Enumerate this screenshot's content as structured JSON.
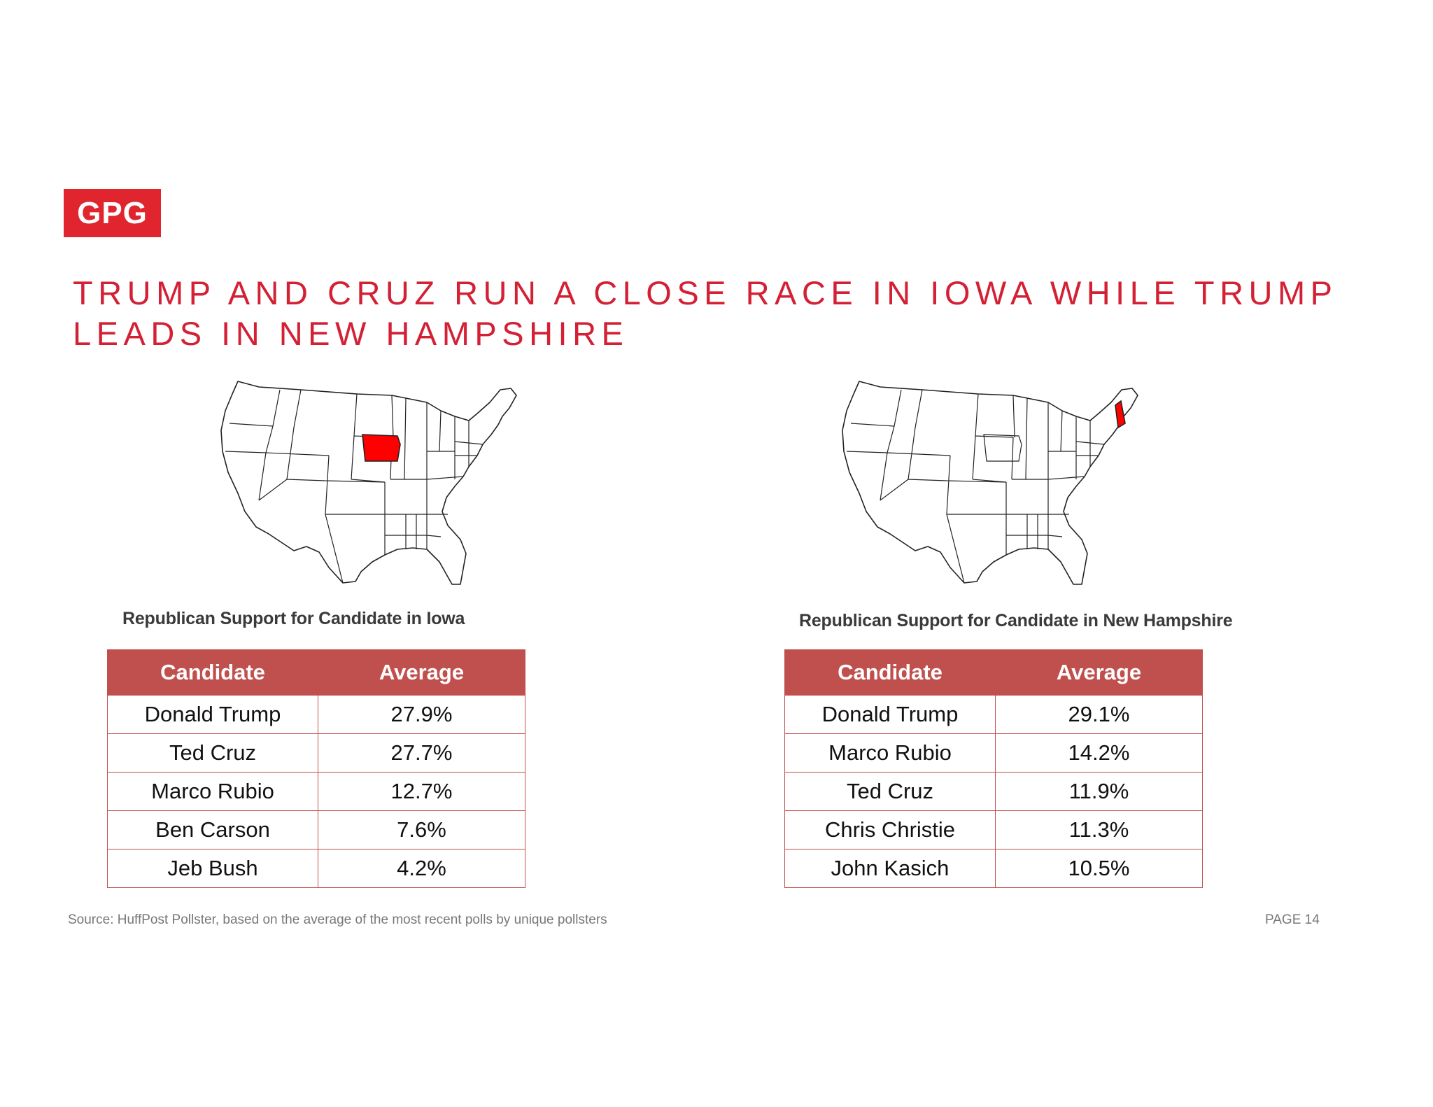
{
  "logo": {
    "text": "GPG"
  },
  "title": {
    "line1": "TRUMP AND CRUZ RUN A CLOSE RACE IN IOWA WHILE TRUMP",
    "line2": "LEADS IN NEW HAMPSHIRE"
  },
  "colors": {
    "brand_red": "#e0252e",
    "title_red": "#d42035",
    "table_header": "#c0504d",
    "highlight_state": "#ff0000"
  },
  "iowa": {
    "highlighted_state": "Iowa",
    "caption": "Republican Support for Candidate in Iowa",
    "headers": [
      "Candidate",
      "Average"
    ],
    "rows": [
      {
        "candidate": "Donald Trump",
        "average": "27.9%"
      },
      {
        "candidate": "Ted Cruz",
        "average": "27.7%"
      },
      {
        "candidate": "Marco Rubio",
        "average": "12.7%"
      },
      {
        "candidate": "Ben Carson",
        "average": "7.6%"
      },
      {
        "candidate": "Jeb Bush",
        "average": "4.2%"
      }
    ]
  },
  "new_hampshire": {
    "highlighted_state": "New Hampshire",
    "caption": "Republican Support for Candidate in New Hampshire",
    "headers": [
      "Candidate",
      "Average"
    ],
    "rows": [
      {
        "candidate": "Donald Trump",
        "average": "29.1%"
      },
      {
        "candidate": "Marco Rubio",
        "average": "14.2%"
      },
      {
        "candidate": "Ted Cruz",
        "average": "11.9%"
      },
      {
        "candidate": "Chris Christie",
        "average": "11.3%"
      },
      {
        "candidate": "John Kasich",
        "average": "10.5%"
      }
    ]
  },
  "footer": {
    "source": "Source: HuffPost Pollster, based on the average of the most recent polls by unique pollsters",
    "page": "PAGE 14"
  }
}
